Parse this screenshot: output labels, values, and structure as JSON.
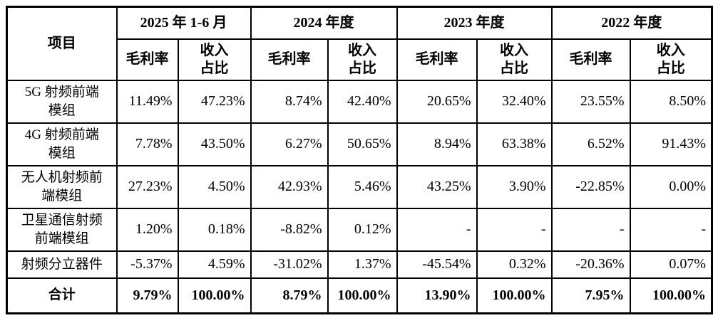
{
  "table": {
    "corner_header": "项目",
    "period_headers": [
      "2025 年 1-6 月",
      "2024 年度",
      "2023 年度",
      "2022 年度"
    ],
    "sub_headers": [
      "毛利率",
      "收入\n占比"
    ],
    "rows": [
      {
        "label": "5G 射频前端\n模组",
        "values": [
          "11.49%",
          "47.23%",
          "8.74%",
          "42.40%",
          "20.65%",
          "32.40%",
          "23.55%",
          "8.50%"
        ]
      },
      {
        "label": "4G 射频前端\n模组",
        "values": [
          "7.78%",
          "43.50%",
          "6.27%",
          "50.65%",
          "8.94%",
          "63.38%",
          "6.52%",
          "91.43%"
        ]
      },
      {
        "label": "无人机射频前\n端模组",
        "values": [
          "27.23%",
          "4.50%",
          "42.93%",
          "5.46%",
          "43.25%",
          "3.90%",
          "-22.85%",
          "0.00%"
        ]
      },
      {
        "label": "卫星通信射频\n前端模组",
        "values": [
          "1.20%",
          "0.18%",
          "-8.82%",
          "0.12%",
          "-",
          "-",
          "-",
          "-"
        ]
      },
      {
        "label": "射频分立器件",
        "values": [
          "-5.37%",
          "4.59%",
          "-31.02%",
          "1.37%",
          "-45.54%",
          "0.32%",
          "-20.36%",
          "0.07%"
        ]
      },
      {
        "label": "合计",
        "values": [
          "9.79%",
          "100.00%",
          "8.79%",
          "100.00%",
          "13.90%",
          "100.00%",
          "7.95%",
          "100.00%"
        ]
      }
    ],
    "text_color": "#000000",
    "border_color": "#000000",
    "background_color": "#ffffff"
  }
}
